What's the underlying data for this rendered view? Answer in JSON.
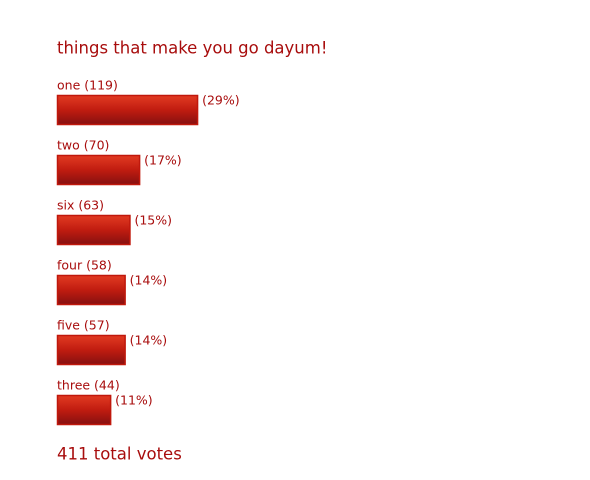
{
  "chart_data": {
    "type": "bar",
    "orientation": "horizontal",
    "title": "things that make you go dayum!",
    "categories": [
      "one (119)",
      "two (70)",
      "six (63)",
      "four (58)",
      "five (57)",
      "three (44)"
    ],
    "values": [
      29,
      17,
      15,
      14,
      14,
      11
    ],
    "value_labels": [
      "(29%)",
      "(17%)",
      "(15%)",
      "(14%)",
      "(14%)",
      "(11%)"
    ],
    "color": "#c0180c",
    "footer": "411 total votes"
  }
}
